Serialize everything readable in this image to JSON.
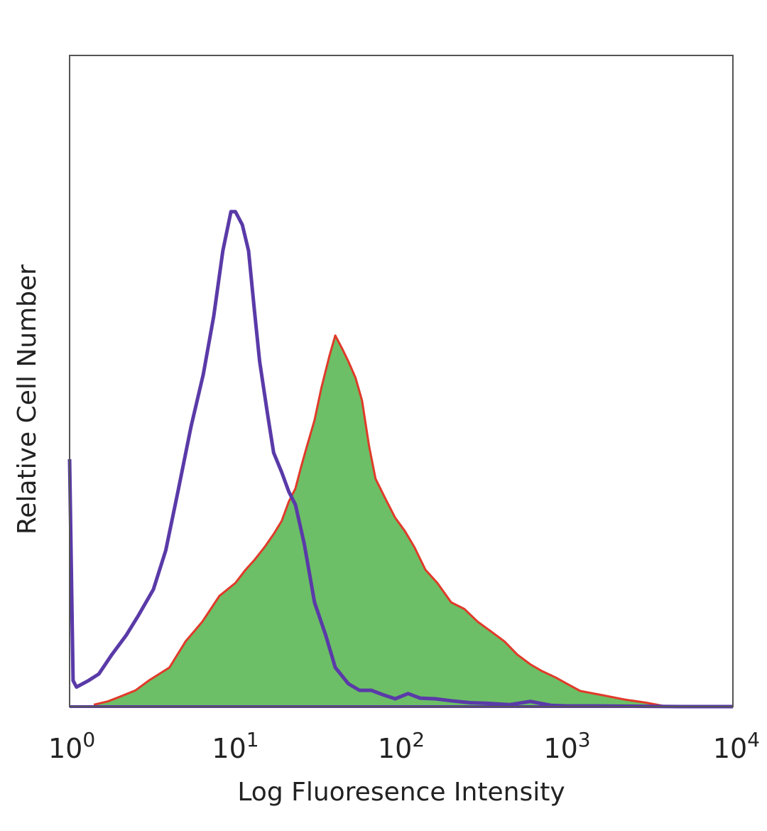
{
  "chart_data": {
    "type": "area",
    "title": "",
    "xlabel": "Log Fluoresence Intensity",
    "ylabel": "Relative Cell Number",
    "x_scale": "log",
    "xlim": [
      1,
      10000
    ],
    "ylim": [
      0,
      100
    ],
    "grid": false,
    "legend": "none",
    "x_ticks": [
      {
        "base": "10",
        "exp": "0",
        "value": 1
      },
      {
        "base": "10",
        "exp": "1",
        "value": 10
      },
      {
        "base": "10",
        "exp": "2",
        "value": 100
      },
      {
        "base": "10",
        "exp": "3",
        "value": 1000
      },
      {
        "base": "10",
        "exp": "4",
        "value": 10000
      }
    ],
    "series": [
      {
        "style": "outline",
        "color": "#5a3aa8",
        "x": [
          1,
          1.05,
          1.1,
          1.3,
          1.5,
          1.8,
          2.2,
          2.6,
          3.2,
          3.8,
          4.5,
          5.4,
          6.4,
          7.4,
          8.4,
          9.4,
          10,
          11,
          12,
          13,
          14,
          15.6,
          17,
          19,
          21,
          23,
          26,
          30,
          35,
          40,
          48,
          56,
          66,
          78,
          92,
          110,
          130,
          160,
          200,
          260,
          330,
          450,
          600,
          800,
          1000,
          1500,
          2500,
          5000,
          10000
        ],
        "y": [
          38,
          4,
          3,
          4,
          5,
          8,
          11,
          14,
          18,
          24,
          33,
          43,
          51,
          60,
          70,
          76,
          76,
          74,
          70,
          61,
          53,
          45,
          39,
          36,
          33,
          31,
          25,
          16,
          11,
          6,
          3.5,
          2.5,
          2.5,
          1.8,
          1.2,
          2,
          1.3,
          1.2,
          0.9,
          0.6,
          0.5,
          0.3,
          0.8,
          0.2,
          0.1,
          0.1,
          0.05,
          0,
          0
        ]
      },
      {
        "style": "filled",
        "fill": "#6cbf66",
        "color": "#e03a2a",
        "x": [
          1.4,
          1.7,
          2,
          2.5,
          3,
          4,
          5,
          6.3,
          8,
          10,
          11.5,
          13,
          15,
          17,
          19,
          21,
          23,
          25,
          27,
          30,
          33,
          37,
          40,
          44,
          48,
          53,
          58,
          64,
          70,
          80,
          92,
          105,
          120,
          140,
          165,
          200,
          240,
          290,
          350,
          420,
          500,
          600,
          700,
          850,
          1000,
          1200,
          1600,
          2200,
          3000,
          4000
        ],
        "y": [
          0.3,
          0.8,
          1.5,
          2.5,
          4,
          6,
          10,
          13,
          17,
          19,
          21,
          22.5,
          24.5,
          26.5,
          28.5,
          31.5,
          33.5,
          37,
          40,
          44,
          49,
          54,
          57,
          55,
          53,
          50.5,
          47,
          40,
          35,
          32,
          29,
          27,
          24.5,
          21,
          19,
          16,
          15,
          13,
          11.5,
          10,
          8,
          6.5,
          5.5,
          4.5,
          3.5,
          2.4,
          1.8,
          1.1,
          0.6,
          0
        ]
      }
    ]
  }
}
